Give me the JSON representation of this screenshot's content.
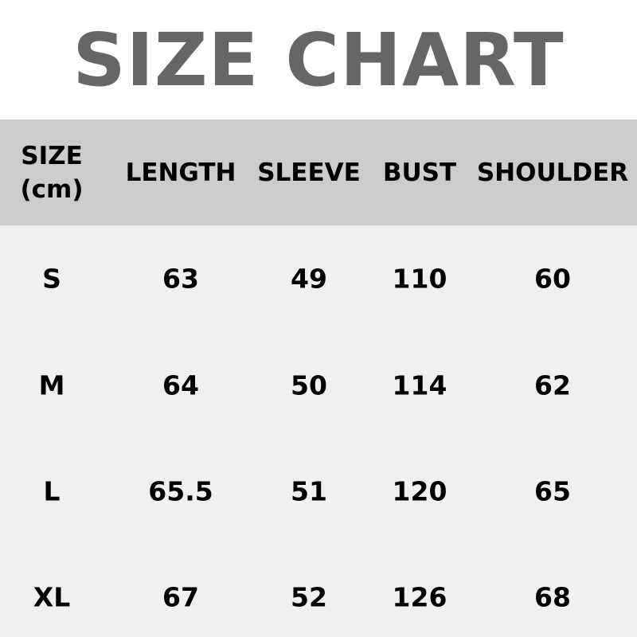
{
  "title": "SIZE CHART",
  "colors": {
    "title": "#666666",
    "header_bg": "#cccccc",
    "body_bg": "#f0f0f0"
  },
  "table": {
    "headers": [
      "SIZE",
      "LENGTH",
      "SLEEVE",
      "BUST",
      "SHOULDER"
    ],
    "unit": "(cm)",
    "rows": [
      [
        "S",
        "63",
        "49",
        "110",
        "60"
      ],
      [
        "M",
        "64",
        "50",
        "114",
        "62"
      ],
      [
        "L",
        "65.5",
        "51",
        "120",
        "65"
      ],
      [
        "XL",
        "67",
        "52",
        "126",
        "68"
      ]
    ]
  }
}
